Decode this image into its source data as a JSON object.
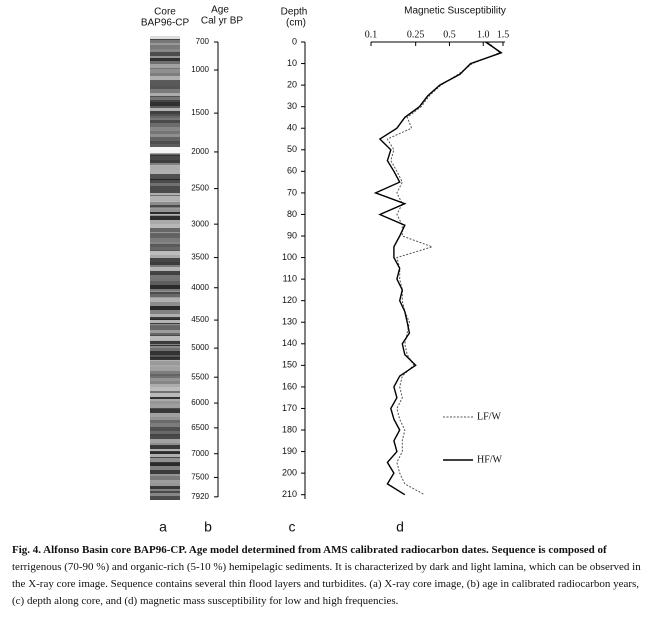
{
  "panels": {
    "core": {
      "title": [
        "Core",
        "BAP96-CP"
      ],
      "letter": "a"
    },
    "age": {
      "title": [
        "Age",
        "Cal yr BP"
      ],
      "letter": "b",
      "ticks": [
        {
          "value": 700,
          "depth": 0
        },
        {
          "value": 1000,
          "depth": 13
        },
        {
          "value": 1500,
          "depth": 33
        },
        {
          "value": 2000,
          "depth": 51
        },
        {
          "value": 2500,
          "depth": 68
        },
        {
          "value": 3000,
          "depth": 84.5
        },
        {
          "value": 3500,
          "depth": 100
        },
        {
          "value": 4000,
          "depth": 114
        },
        {
          "value": 4500,
          "depth": 129
        },
        {
          "value": 5000,
          "depth": 142
        },
        {
          "value": 5500,
          "depth": 155.5
        },
        {
          "value": 6000,
          "depth": 167.5
        },
        {
          "value": 6500,
          "depth": 179
        },
        {
          "value": 7000,
          "depth": 191
        },
        {
          "value": 7500,
          "depth": 202
        },
        {
          "value": 7920,
          "depth": 211
        }
      ]
    },
    "depth": {
      "title": [
        "Depth",
        "(cm)"
      ],
      "letter": "c"
    },
    "susceptibility": {
      "letter": "d"
    }
  },
  "chart_data": {
    "type": "line",
    "orientation": "vertical",
    "title": "Magnetic Susceptibility",
    "x": [
      0,
      5,
      10,
      15,
      20,
      25,
      30,
      35,
      40,
      45,
      50,
      55,
      60,
      65,
      70,
      75,
      80,
      85,
      90,
      95,
      100,
      105,
      110,
      115,
      120,
      125,
      130,
      135,
      140,
      145,
      150,
      155,
      160,
      165,
      170,
      175,
      180,
      185,
      190,
      195,
      200,
      205,
      210
    ],
    "xlim": [
      0,
      212
    ],
    "xticks": [
      0,
      10,
      20,
      30,
      40,
      50,
      60,
      70,
      80,
      90,
      100,
      110,
      120,
      130,
      140,
      150,
      160,
      170,
      180,
      190,
      200,
      210
    ],
    "ylim": [
      0.1,
      1.5
    ],
    "yticks": [
      0.1,
      0.25,
      0.5,
      {
        "value": 1,
        "label": "1.0"
      },
      1.5
    ],
    "ylog": true,
    "legend": "right",
    "series": [
      {
        "name": "LF/W",
        "color": "#555555",
        "style": "dotted",
        "values": [
          1.1,
          1.4,
          0.8,
          0.6,
          0.42,
          0.33,
          0.28,
          0.21,
          0.23,
          0.14,
          0.16,
          0.15,
          0.17,
          0.19,
          0.17,
          0.19,
          0.17,
          0.19,
          0.19,
          0.35,
          0.17,
          0.18,
          0.18,
          0.19,
          0.19,
          0.2,
          0.22,
          0.21,
          0.2,
          0.21,
          0.24,
          0.19,
          0.18,
          0.19,
          0.17,
          0.18,
          0.2,
          0.19,
          0.19,
          0.17,
          0.18,
          0.2,
          0.3
        ]
      },
      {
        "name": "HF/W",
        "color": "#000000",
        "style": "solid",
        "values": [
          1.05,
          1.45,
          0.77,
          0.62,
          0.41,
          0.32,
          0.27,
          0.2,
          0.17,
          0.12,
          0.15,
          0.14,
          0.16,
          0.18,
          0.11,
          0.2,
          0.12,
          0.2,
          0.18,
          0.16,
          0.16,
          0.18,
          0.17,
          0.19,
          0.18,
          0.2,
          0.21,
          0.22,
          0.19,
          0.2,
          0.25,
          0.18,
          0.16,
          0.17,
          0.15,
          0.16,
          0.18,
          0.16,
          0.17,
          0.14,
          0.16,
          0.14,
          0.2
        ]
      }
    ]
  },
  "caption": {
    "bold": "Fig. 4. Alfonso Basin core BAP96-CP. Age model determined from AMS calibrated radiocarbon dates. Sequence is composed of",
    "text": "terrigenous (70-90 %) and organic-rich (5-10 %) hemipelagic sediments. It is characterized by dark and light lamina, which can be observed in the X-ray core image. Sequence contains several thin flood layers and turbidites. (a) X-ray core image, (b) age in calibrated radiocarbon years, (c) depth along core, and (d) magnetic mass susceptibility for low and high frequencies."
  }
}
